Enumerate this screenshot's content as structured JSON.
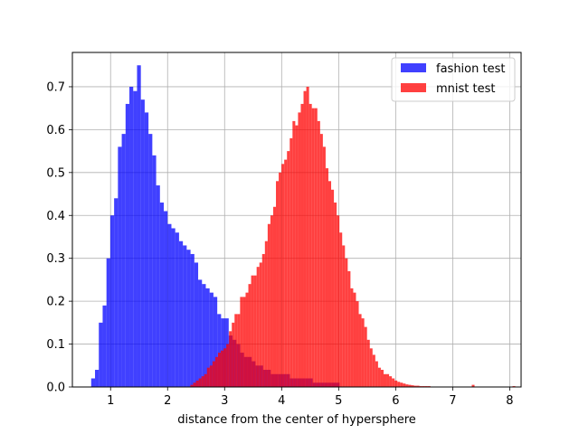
{
  "chart_data": {
    "type": "histogram",
    "xlabel": "distance from the center of hypersphere",
    "ylabel": "",
    "title": "",
    "xlim": [
      0.33,
      8.2
    ],
    "ylim": [
      0,
      0.78
    ],
    "xticks": [
      1,
      2,
      3,
      4,
      5,
      6,
      7,
      8
    ],
    "yticks": [
      0.0,
      0.1,
      0.2,
      0.3,
      0.4,
      0.5,
      0.6,
      0.7
    ],
    "grid": true,
    "legend": "top-right",
    "series": [
      {
        "name": "fashion test",
        "color": "#0000ff",
        "opacity": 0.75,
        "bin_width": 0.067,
        "bin_starts": [
          0.66,
          0.727,
          0.794,
          0.861,
          0.928,
          0.995,
          1.062,
          1.129,
          1.196,
          1.263,
          1.33,
          1.397,
          1.464,
          1.531,
          1.598,
          1.665,
          1.732,
          1.799,
          1.866,
          1.933,
          2.0,
          2.067,
          2.134,
          2.201,
          2.268,
          2.335,
          2.402,
          2.469,
          2.536,
          2.603,
          2.67,
          2.737,
          2.804,
          2.871,
          2.938,
          3.005,
          3.072,
          3.139,
          3.206,
          3.273,
          3.34,
          3.407,
          3.474,
          3.541,
          3.608,
          3.675,
          3.742,
          3.809,
          3.876,
          3.943,
          4.01,
          4.077,
          4.144,
          4.211,
          4.278,
          4.345,
          4.412,
          4.479,
          4.546,
          4.613,
          4.68,
          4.747,
          4.814,
          4.881,
          4.948
        ],
        "values": [
          0.02,
          0.04,
          0.15,
          0.19,
          0.3,
          0.4,
          0.44,
          0.56,
          0.59,
          0.66,
          0.7,
          0.69,
          0.75,
          0.67,
          0.64,
          0.59,
          0.54,
          0.47,
          0.43,
          0.41,
          0.38,
          0.37,
          0.36,
          0.34,
          0.33,
          0.32,
          0.31,
          0.29,
          0.25,
          0.24,
          0.23,
          0.22,
          0.21,
          0.17,
          0.16,
          0.16,
          0.12,
          0.11,
          0.1,
          0.08,
          0.07,
          0.07,
          0.06,
          0.05,
          0.05,
          0.04,
          0.04,
          0.03,
          0.03,
          0.03,
          0.03,
          0.03,
          0.02,
          0.02,
          0.02,
          0.02,
          0.02,
          0.02,
          0.01,
          0.01,
          0.01,
          0.01,
          0.01,
          0.01,
          0.01
        ]
      },
      {
        "name": "mnist test",
        "color": "#ff0000",
        "opacity": 0.75,
        "bin_width": 0.0484,
        "bin_starts": [
          2.4,
          2.4484,
          2.4968,
          2.5452,
          2.5936,
          2.642,
          2.6904,
          2.7388,
          2.7872,
          2.8356,
          2.884,
          2.9324,
          2.9808,
          3.0292,
          3.0776,
          3.126,
          3.1744,
          3.2228,
          3.2712,
          3.3196,
          3.368,
          3.4164,
          3.4648,
          3.5132,
          3.5616,
          3.61,
          3.6584,
          3.7068,
          3.7552,
          3.8036,
          3.852,
          3.9004,
          3.9488,
          3.9972,
          4.0456,
          4.094,
          4.1424,
          4.1908,
          4.2392,
          4.2876,
          4.336,
          4.3844,
          4.4328,
          4.4812,
          4.5296,
          4.578,
          4.6264,
          4.6748,
          4.7232,
          4.7716,
          4.82,
          4.8684,
          4.9168,
          4.9652,
          5.0136,
          5.062,
          5.1104,
          5.1588,
          5.2072,
          5.2556,
          5.304,
          5.3524,
          5.4008,
          5.4492,
          5.4976,
          5.546,
          5.5944,
          5.6428,
          5.6912,
          5.7396,
          5.788,
          5.8364,
          5.8848,
          5.9332,
          5.9816,
          6.03,
          6.0784,
          6.1268,
          6.1752,
          6.2236,
          6.272,
          6.3204,
          6.3688,
          6.4172,
          6.4656,
          6.514,
          6.5624,
          7.335,
          8.05
        ],
        "values": [
          0.005,
          0.01,
          0.015,
          0.02,
          0.025,
          0.03,
          0.045,
          0.05,
          0.06,
          0.07,
          0.08,
          0.085,
          0.09,
          0.1,
          0.13,
          0.15,
          0.17,
          0.17,
          0.21,
          0.21,
          0.22,
          0.24,
          0.26,
          0.26,
          0.28,
          0.29,
          0.31,
          0.34,
          0.38,
          0.4,
          0.42,
          0.48,
          0.5,
          0.52,
          0.53,
          0.55,
          0.58,
          0.62,
          0.61,
          0.64,
          0.66,
          0.69,
          0.7,
          0.66,
          0.65,
          0.65,
          0.62,
          0.59,
          0.56,
          0.51,
          0.48,
          0.46,
          0.43,
          0.4,
          0.36,
          0.33,
          0.3,
          0.27,
          0.23,
          0.22,
          0.2,
          0.17,
          0.16,
          0.14,
          0.11,
          0.09,
          0.075,
          0.06,
          0.045,
          0.04,
          0.03,
          0.03,
          0.025,
          0.02,
          0.015,
          0.012,
          0.01,
          0.008,
          0.006,
          0.005,
          0.004,
          0.003,
          0.003,
          0.002,
          0.002,
          0.002,
          0.002,
          0.005,
          0.002
        ]
      }
    ]
  }
}
